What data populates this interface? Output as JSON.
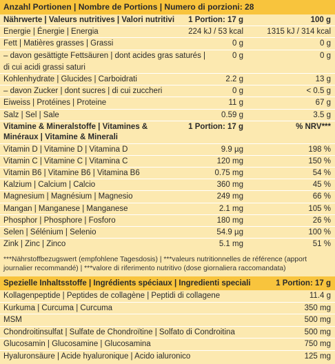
{
  "header": "Anzahl Portionen | Nombre de Portions | Numero di porzioni: 28",
  "nutrition": {
    "head": {
      "label": "Nährwerte | Valeurs nutritives | Valori nutritivi",
      "c1": "1 Portion: 17 g",
      "c2": "100 g"
    },
    "rows": [
      {
        "label": "Energie | Énergie | Energia",
        "c1": "224 kJ / 53 kcal",
        "c2": "1315 kJ / 314 kcal"
      },
      {
        "label": "Fett | Matières grasses | Grassi",
        "c1": "0 g",
        "c2": "0 g"
      },
      {
        "label": "– davon gesättigte Fettsäuren | dont acides gras saturés |",
        "c1": "0 g",
        "c2": "0 g"
      },
      {
        "label": "di cui acidi grassi saturi",
        "c1": "",
        "c2": ""
      },
      {
        "label": "Kohlenhydrate | Glucides | Carboidrati",
        "c1": "2.2 g",
        "c2": "13 g"
      },
      {
        "label": "– davon Zucker | dont sucres | di cui zuccheri",
        "c1": "0 g",
        "c2": "< 0.5 g"
      },
      {
        "label": "Eiweiss | Protéines | Proteine",
        "c1": "11 g",
        "c2": "67 g"
      },
      {
        "label": "Salz | Sel | Sale",
        "c1": "0.59 g",
        "c2": "3.5 g"
      }
    ]
  },
  "vitamins": {
    "head": {
      "label": "Vitamine & Mineralstoffe | Vitamines & Minéraux | Vitamine & Minerali",
      "c1": "1 Portion: 17 g",
      "c2": "% NRV***"
    },
    "rows": [
      {
        "label": "Vitamin D | Vitamine D | Vitamina D",
        "c1": "9.9 µg",
        "c2": "198 %"
      },
      {
        "label": "Vitamin C | Vitamine C | Vitamina C",
        "c1": "120 mg",
        "c2": "150 %"
      },
      {
        "label": "Vitamin B6 | Vitamine B6 | Vitamina B6",
        "c1": "0.75 mg",
        "c2": "54 %"
      },
      {
        "label": "Kalzium | Calcium | Calcio",
        "c1": "360 mg",
        "c2": "45 %"
      },
      {
        "label": "Magnesium | Magnésium | Magnesio",
        "c1": "249 mg",
        "c2": "66 %"
      },
      {
        "label": "Mangan | Manganese | Manganese",
        "c1": "2.1 mg",
        "c2": "105 %"
      },
      {
        "label": "Phosphor | Phosphore | Fosforo",
        "c1": "180 mg",
        "c2": "26 %"
      },
      {
        "label": "Selen | Sélénium | Selenio",
        "c1": "54.9 µg",
        "c2": "100 %"
      },
      {
        "label": "Zink | Zinc | Zinco",
        "c1": "5.1 mg",
        "c2": "51 %"
      }
    ]
  },
  "footnote": "***Nährstoffbezugswert (empfohlene Tagesdosis) | ***valeurs nutritionnelles de référence (apport journalier recommandé) | ***valore di riferimento nutritivo (dose giornaliera raccomandata)",
  "special": {
    "head": {
      "label": "Spezielle Inhaltsstoffe | Ingrédients spéciaux | Ingredienti speciali",
      "c2": "1 Portion: 17 g"
    },
    "rows": [
      {
        "label": "Kollagenpeptide | Peptides de collagène | Peptidi di collagene",
        "c2": "11.4 g"
      },
      {
        "label": "Kurkuma | Curcuma | Curcuma",
        "c2": "350 mg"
      },
      {
        "label": "MSM",
        "c2": "500 mg"
      },
      {
        "label": "Chondroitinsulfat | Sulfate de Chondroïtine | Solfato di Condroitina",
        "c2": "500 mg"
      },
      {
        "label": "Glucosamin | Glucosamine | Glucosamina",
        "c2": "750 mg"
      },
      {
        "label": "Hyaluronsäure | Acide hyaluronique | Acido ialuronico",
        "c2": "125 mg"
      }
    ]
  }
}
